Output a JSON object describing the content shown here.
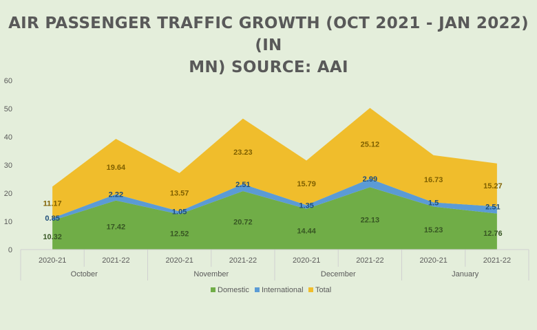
{
  "chart_data": {
    "type": "area",
    "title": "AIR PASSENGER TRAFFIC GROWTH (OCT 2021 - JAN 2022) (IN MN) SOURCE: AAI",
    "title_line1": "AIR PASSENGER TRAFFIC GROWTH (OCT 2021 - JAN 2022) (IN",
    "title_line2": "MN) SOURCE: AAI",
    "stacked": true,
    "groups": [
      "October",
      "November",
      "December",
      "January"
    ],
    "categories": [
      "2020-21",
      "2021-22",
      "2020-21",
      "2021-22",
      "2020-21",
      "2021-22",
      "2020-21",
      "2021-22"
    ],
    "series": [
      {
        "name": "Domestic",
        "color": "#70ad47",
        "label_color": "#375623",
        "values": [
          10.32,
          17.42,
          12.52,
          20.72,
          14.44,
          22.13,
          15.23,
          12.76
        ]
      },
      {
        "name": "International",
        "color": "#5b9bd5",
        "label_color": "#1f4e79",
        "values": [
          0.85,
          2.22,
          1.05,
          2.51,
          1.35,
          2.99,
          1.5,
          2.51
        ]
      },
      {
        "name": "Total",
        "color": "#f0bd2c",
        "label_color": "#7f6000",
        "values": [
          11.17,
          19.64,
          13.57,
          23.23,
          15.79,
          25.12,
          16.73,
          15.27
        ]
      }
    ],
    "ylim": [
      0,
      60
    ],
    "yticks": [
      0,
      10,
      20,
      30,
      40,
      50,
      60
    ],
    "grid": false,
    "legend_position": "bottom"
  }
}
